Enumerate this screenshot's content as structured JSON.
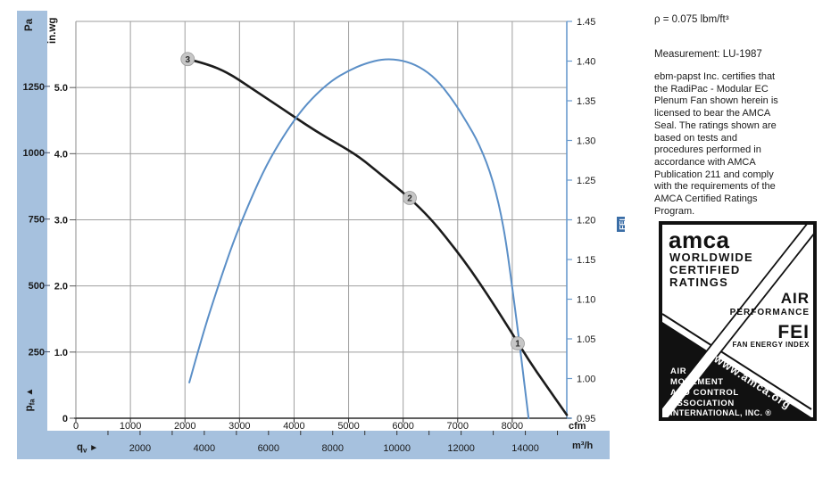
{
  "colors": {
    "band": "#a6c1de",
    "grid": "#9e9e9e",
    "axis_blue": "#6b9bce",
    "curve_black": "#1c1c1c",
    "curve_blue": "#5b8fc7",
    "marker_fill": "#c6c6c6",
    "marker_edge": "#9a9a9a",
    "fei_badge_bg": "#3a6da6",
    "text": "#1a1a1a"
  },
  "chart_data": {
    "type": "line",
    "title": "",
    "x_axis": {
      "primary_unit": "cfm",
      "secondary_unit": "m³/h",
      "flow_symbol": "q",
      "flow_symbol_sub": "v",
      "flow_arrow": "►",
      "cfm_ticks": [
        0,
        1000,
        2000,
        3000,
        4000,
        5000,
        6000,
        7000,
        8000
      ],
      "m3h_ticks": [
        2000,
        4000,
        6000,
        8000,
        10000,
        12000,
        14000
      ],
      "cfm_range": [
        0,
        9000
      ],
      "grid": true
    },
    "y_left": {
      "unit_outer": "Pa",
      "unit_inner": "in.wg",
      "pressure_symbol": "p",
      "pressure_symbol_sub": "fa",
      "pressure_arrow": "▲",
      "pa_ticks": [
        1250,
        1000,
        750,
        500,
        250
      ],
      "inwg_tick_labels": [
        "5.0",
        "4.0",
        "3.0",
        "2.0",
        "1.0",
        "0"
      ],
      "inwg_tick_values": [
        5,
        4,
        3,
        2,
        1,
        0
      ],
      "inwg_range": [
        0,
        6
      ]
    },
    "y_right": {
      "unit": "FEI",
      "tick_labels": [
        "1.45",
        "1.40",
        "1.35",
        "1.30",
        "1.25",
        "1.20",
        "1.15",
        "1.10",
        "1.05",
        "1.00",
        "0.95"
      ],
      "tick_values": [
        1.45,
        1.4,
        1.35,
        1.3,
        1.25,
        1.2,
        1.15,
        1.1,
        1.05,
        1.0,
        0.95
      ],
      "range": [
        0.95,
        1.45
      ]
    },
    "series": [
      {
        "name": "fan-pressure-curve",
        "y_scale": "inwg",
        "color": "#1c1c1c",
        "width": 2.6,
        "points": [
          [
            2050,
            5.43
          ],
          [
            2400,
            5.36
          ],
          [
            2800,
            5.22
          ],
          [
            3200,
            5.0
          ],
          [
            3600,
            4.78
          ],
          [
            4000,
            4.56
          ],
          [
            4400,
            4.34
          ],
          [
            4800,
            4.15
          ],
          [
            5200,
            3.95
          ],
          [
            5600,
            3.68
          ],
          [
            6120,
            3.33
          ],
          [
            6500,
            3.02
          ],
          [
            6800,
            2.72
          ],
          [
            7100,
            2.4
          ],
          [
            7400,
            2.05
          ],
          [
            7700,
            1.67
          ],
          [
            8000,
            1.28
          ],
          [
            8300,
            0.88
          ],
          [
            8600,
            0.52
          ],
          [
            9000,
            0.05
          ]
        ]
      },
      {
        "name": "fei-curve",
        "y_scale": "fei",
        "color": "#5b8fc7",
        "width": 2,
        "points": [
          [
            2080,
            0.995
          ],
          [
            2300,
            1.05
          ],
          [
            2600,
            1.115
          ],
          [
            2900,
            1.175
          ],
          [
            3200,
            1.225
          ],
          [
            3500,
            1.27
          ],
          [
            3800,
            1.305
          ],
          [
            4100,
            1.335
          ],
          [
            4400,
            1.358
          ],
          [
            4700,
            1.376
          ],
          [
            5000,
            1.388
          ],
          [
            5300,
            1.397
          ],
          [
            5650,
            1.403
          ],
          [
            6000,
            1.401
          ],
          [
            6300,
            1.393
          ],
          [
            6600,
            1.378
          ],
          [
            6900,
            1.352
          ],
          [
            7150,
            1.325
          ],
          [
            7400,
            1.295
          ],
          [
            7650,
            1.25
          ],
          [
            7850,
            1.19
          ],
          [
            8000,
            1.115
          ],
          [
            8150,
            1.035
          ],
          [
            8300,
            0.95
          ]
        ]
      }
    ],
    "operating_points": [
      {
        "label": "1",
        "cfm": 8100,
        "inwg": 1.13
      },
      {
        "label": "2",
        "cfm": 6120,
        "inwg": 3.33
      },
      {
        "label": "3",
        "cfm": 2050,
        "inwg": 5.43
      }
    ]
  },
  "side_panel": {
    "density": "ρ = 0.075 lbm/ft³",
    "measurement": "Measurement: LU-1987",
    "certification": "ebm-papst Inc. certifies that\nthe RadiPac - Modular EC\nPlenum Fan shown herein is\nlicensed to bear the AMCA\nSeal. The ratings shown are\nbased on tests and\nprocedures performed in\naccordance with AMCA\nPublication 211 and comply\nwith the requirements of the\nAMCA Certified Ratings\nProgram."
  },
  "amca_badge": {
    "brand": "amca",
    "line1": "WORLDWIDE",
    "line2": "CERTIFIED",
    "line3": "RATINGS",
    "air": "AIR",
    "performance": "PERFORMANCE",
    "fei": "FEI",
    "fei_sub": "FAN ENERGY INDEX",
    "assoc1": "AIR",
    "assoc2": "MOVEMENT",
    "assoc3": "AND CONTROL",
    "assoc4": "ASSOCIATION",
    "assoc5": "INTERNATIONAL, INC. ®",
    "website": "www.amca.org"
  }
}
